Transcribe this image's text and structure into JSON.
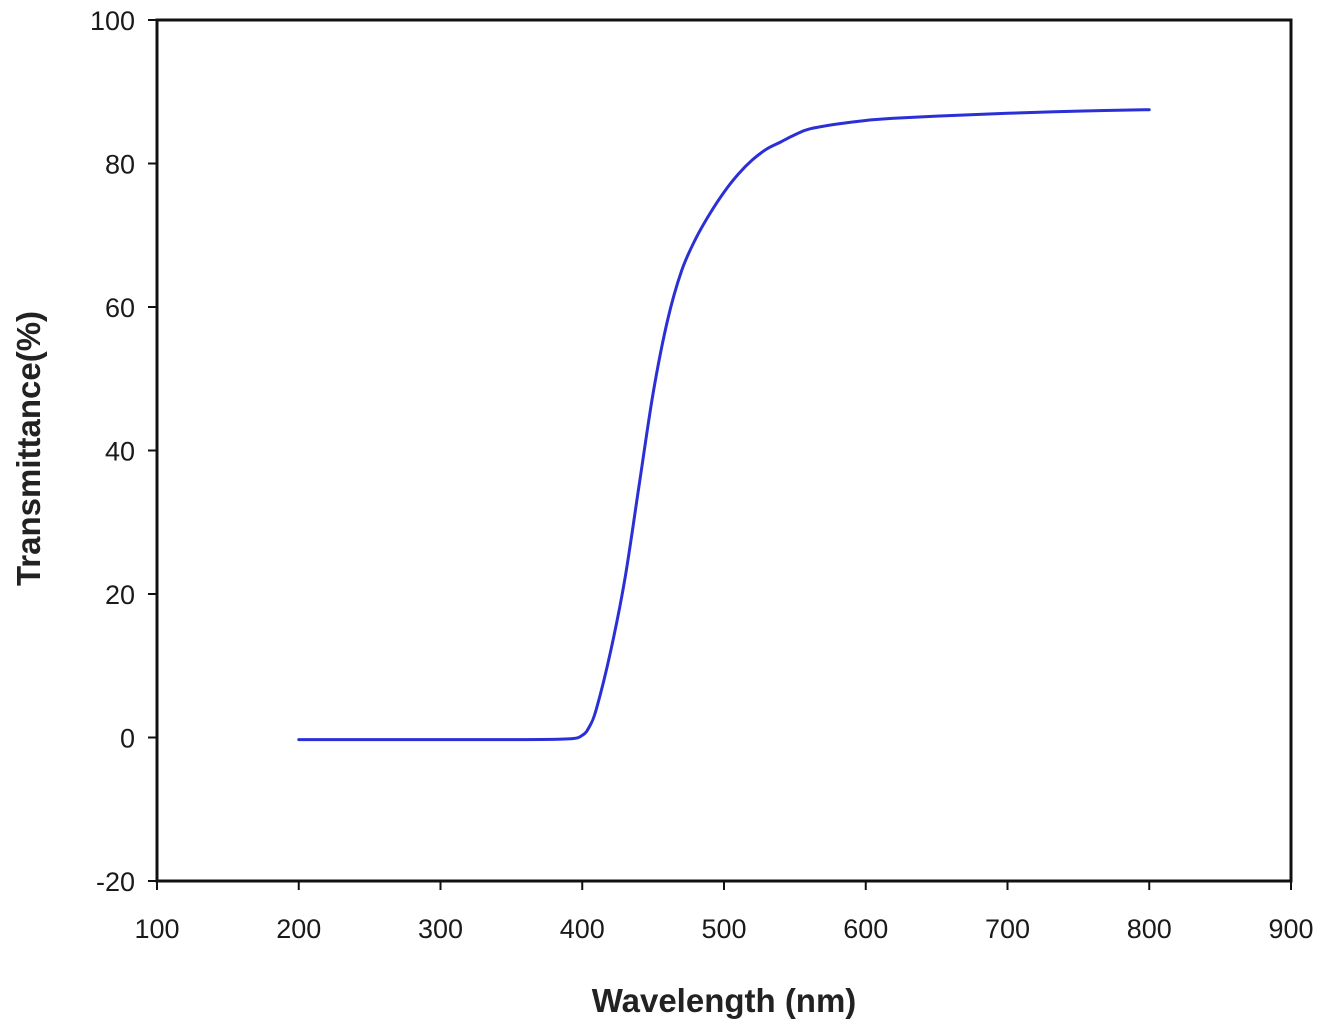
{
  "chart_data": {
    "type": "line",
    "title": "",
    "xlabel": "Wavelength (nm)",
    "ylabel": "Transmittance(%)",
    "xlim": [
      100,
      900
    ],
    "ylim": [
      -20,
      100
    ],
    "x_ticks": [
      "100",
      "200",
      "300",
      "400",
      "500",
      "600",
      "700",
      "800",
      "900"
    ],
    "y_ticks": [
      "-20",
      "0",
      "20",
      "40",
      "60",
      "80",
      "100"
    ],
    "x_tick_values": [
      100,
      200,
      300,
      400,
      500,
      600,
      700,
      800,
      900
    ],
    "y_tick_values": [
      -20,
      0,
      20,
      40,
      60,
      80,
      100
    ],
    "grid": false,
    "legend": "none",
    "series": [
      {
        "color": "#2a2fd6",
        "x": [
          200,
          250,
          300,
          350,
          390,
          400,
          405,
          410,
          420,
          430,
          440,
          450,
          460,
          470,
          480,
          490,
          500,
          510,
          520,
          530,
          540,
          550,
          560,
          580,
          600,
          620,
          650,
          700,
          750,
          800
        ],
        "y": [
          -0.3,
          -0.3,
          -0.3,
          -0.3,
          -0.2,
          0.3,
          1.5,
          4,
          12,
          22,
          35,
          48,
          58,
          65,
          69.5,
          73,
          76,
          78.5,
          80.5,
          82,
          83,
          84,
          84.8,
          85.5,
          86,
          86.3,
          86.6,
          87,
          87.3,
          87.5
        ]
      }
    ]
  }
}
